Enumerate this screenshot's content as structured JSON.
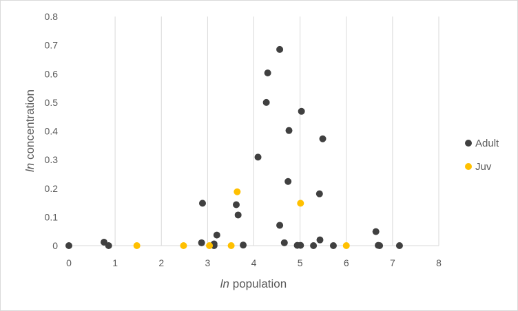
{
  "chart_data": {
    "type": "scatter",
    "xlabel": {
      "italic": "ln",
      "rest": " population"
    },
    "ylabel": {
      "italic": "ln",
      "rest": " concentration"
    },
    "xlim": [
      0,
      8
    ],
    "ylim": [
      0,
      0.8
    ],
    "x_ticks": [
      "0",
      "1",
      "2",
      "3",
      "4",
      "5",
      "6",
      "7",
      "8"
    ],
    "y_ticks": [
      "0",
      "0.1",
      "0.2",
      "0.3",
      "0.4",
      "0.5",
      "0.6",
      "0.7",
      "0.8"
    ],
    "grid": "vertical",
    "legend_position": "right",
    "series": [
      {
        "name": "Adult",
        "color": "#404040",
        "points": [
          [
            0.0,
            0.0
          ],
          [
            0.76,
            0.012
          ],
          [
            0.86,
            0.0
          ],
          [
            2.87,
            0.01
          ],
          [
            2.89,
            0.148
          ],
          [
            3.14,
            0.006
          ],
          [
            3.14,
            0.0
          ],
          [
            3.2,
            0.037
          ],
          [
            3.62,
            0.143
          ],
          [
            3.66,
            0.107
          ],
          [
            3.77,
            0.002
          ],
          [
            4.09,
            0.309
          ],
          [
            4.27,
            0.5
          ],
          [
            4.3,
            0.603
          ],
          [
            4.56,
            0.685
          ],
          [
            4.56,
            0.071
          ],
          [
            4.66,
            0.01
          ],
          [
            4.74,
            0.224
          ],
          [
            4.76,
            0.402
          ],
          [
            4.94,
            0.001
          ],
          [
            5.01,
            0.001
          ],
          [
            5.03,
            0.469
          ],
          [
            5.29,
            0.0
          ],
          [
            5.42,
            0.181
          ],
          [
            5.43,
            0.02
          ],
          [
            5.49,
            0.373
          ],
          [
            5.72,
            0.0
          ],
          [
            6.64,
            0.049
          ],
          [
            6.69,
            0.001
          ],
          [
            6.72,
            0.0
          ],
          [
            7.15,
            0.0
          ]
        ]
      },
      {
        "name": "Juv",
        "color": "#ffc000",
        "points": [
          [
            1.47,
            0.0
          ],
          [
            2.48,
            0.0
          ],
          [
            3.04,
            0.0
          ],
          [
            3.51,
            0.0
          ],
          [
            3.64,
            0.188
          ],
          [
            5.01,
            0.148
          ],
          [
            6.0,
            0.0
          ]
        ]
      }
    ]
  }
}
